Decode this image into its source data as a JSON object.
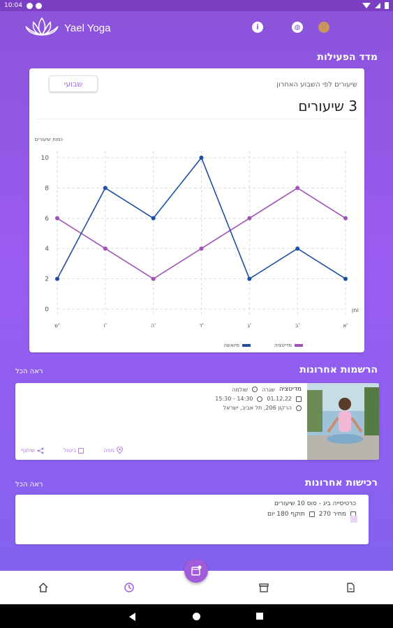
{
  "status_bar": {
    "time": "10:04"
  },
  "app": {
    "title": "Yael Yoga"
  },
  "activity": {
    "section_title": "מדד הפעילות",
    "subtitle": "שיעורים לפי השבוע האחרון",
    "big_value": "3 שיעורים",
    "period_button": "שבועי"
  },
  "chart_data": {
    "type": "line",
    "categories": [
      "א'",
      "ב'",
      "ג'",
      "ד'",
      "ה'",
      "ו'",
      "ש'"
    ],
    "x_axis_note": "זמן",
    "ylabel": "כמות שיעורים",
    "ylim": [
      0,
      10
    ],
    "y_ticks": [
      "0",
      "2",
      "4",
      "6",
      "8",
      "10"
    ],
    "series": [
      {
        "name": "מדיטציה",
        "color": "#a052b8",
        "values": [
          6,
          8,
          6,
          4,
          2,
          4,
          6
        ]
      },
      {
        "name": "מיואשה",
        "color": "#1f4fa3",
        "values": [
          2,
          4,
          2,
          10,
          6,
          8,
          2
        ]
      }
    ],
    "legend_position": "bottom",
    "grid": true
  },
  "registrations": {
    "section_title": "הרשמות אחרונות",
    "see_all": "ראה הכל",
    "item": {
      "name": "מדיטציה",
      "type": "שגרה",
      "status": "שולמה",
      "date": "01.12.22",
      "time": "14:30 - 15:30",
      "location": "הרקון 206, תל אביב, ישראל",
      "actions": {
        "map": "מפה",
        "calendar": "ביטול",
        "share": "שיתוף"
      }
    }
  },
  "purchases": {
    "section_title": "רכישות אחרונות",
    "see_all": "ראה הכל",
    "item": {
      "title": "כרטיסייה ביג - סוס 10 שיעורים",
      "price": "מחיר 270",
      "validity": "תוקף 180 יום"
    }
  }
}
